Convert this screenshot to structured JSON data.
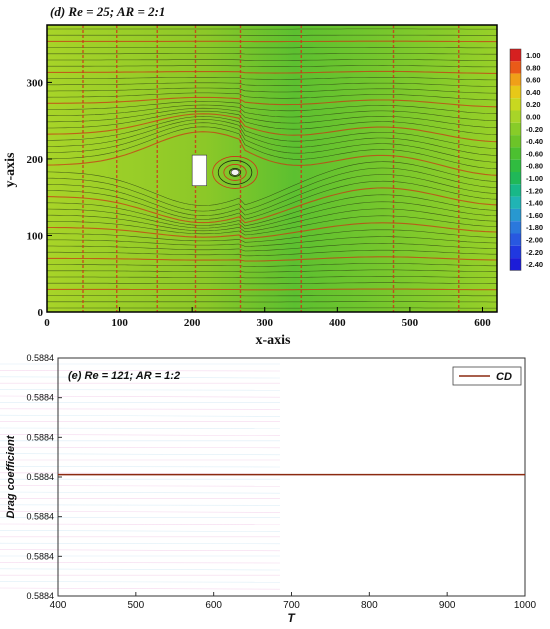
{
  "chart_data": [
    {
      "type": "heatmap",
      "title": "(d) Re = 25; AR = 2:1",
      "xlabel": "x-axis",
      "ylabel": "y-axis",
      "xlim": [
        0,
        620
      ],
      "ylim": [
        0,
        375
      ],
      "x_ticks": [
        "0",
        "100",
        "200",
        "300",
        "400",
        "500",
        "600"
      ],
      "y_ticks": [
        "0",
        "100",
        "200",
        "300"
      ],
      "obstacle": {
        "x": [
          200,
          220
        ],
        "y": [
          165,
          205
        ]
      },
      "colorbar": {
        "levels": [
          "1.00",
          "0.80",
          "0.60",
          "0.40",
          "0.20",
          "0.00",
          "-0.20",
          "-0.40",
          "-0.60",
          "-0.80",
          "-1.00",
          "-1.20",
          "-1.40",
          "-1.60",
          "-1.80",
          "-2.00",
          "-2.20",
          "-2.40"
        ],
        "colors": [
          "#d62020",
          "#ea5a18",
          "#f0a018",
          "#e8c818",
          "#c8d820",
          "#a8d428",
          "#88cc28",
          "#6cc428",
          "#4cc030",
          "#30bc40",
          "#20b858",
          "#18b888",
          "#20b4b4",
          "#2898d0",
          "#2a78dc",
          "#2858e0",
          "#2038e0",
          "#1c1cd8"
        ]
      }
    },
    {
      "type": "line",
      "title": "(e) Re = 121; AR = 1:2",
      "xlabel": "T",
      "ylabel": "Drag coefficient",
      "xlim": [
        400,
        1000
      ],
      "x_ticks": [
        "400",
        "500",
        "600",
        "700",
        "800",
        "900",
        "1000"
      ],
      "y_ticks": [
        "0.5884",
        "0.5884",
        "0.5884",
        "0.5884",
        "0.5884",
        "0.5884",
        "0.5884"
      ],
      "series": [
        {
          "name": "CD",
          "color": "#8b2a10",
          "x": [
            400,
            1000
          ],
          "y": [
            0.5884,
            0.5884
          ]
        }
      ]
    }
  ]
}
